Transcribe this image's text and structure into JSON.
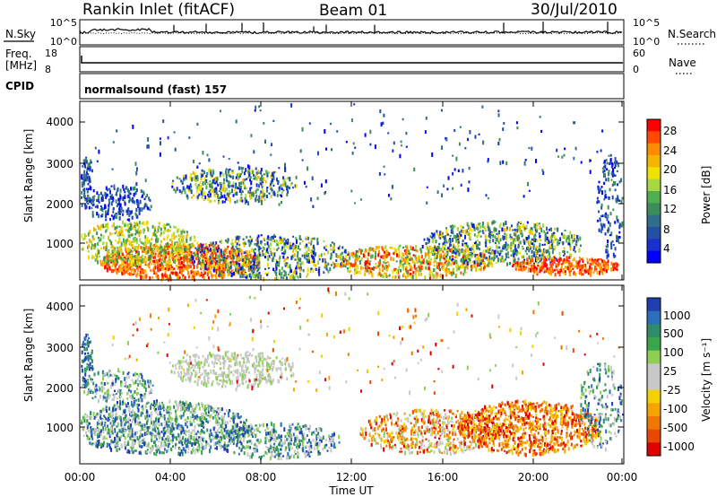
{
  "header": {
    "title": "Rankin Inlet (fitACF)",
    "beam": "Beam 01",
    "date": "30/Jul/2010"
  },
  "sky_panel": {
    "left_label": "N.Sky",
    "right_label": "N.Search",
    "left_ticks": [
      "10^5",
      "10^0"
    ],
    "right_ticks": [
      "10^5",
      "10^0"
    ]
  },
  "freq_panel": {
    "left_label_top": "Freq.",
    "left_label_unit": "[MHz]",
    "left_ticks": [
      "18",
      "8"
    ],
    "right_ticks": [
      "60",
      "0"
    ],
    "right_label": "Nave"
  },
  "cpid_panel": {
    "label": "CPID",
    "value": "normalsound (fast) 157"
  },
  "chart_data": [
    {
      "type": "heatmap",
      "name": "power",
      "ylabel": "Slant Range [km]",
      "y_ticks": [
        "4000",
        "3000",
        "2000",
        "1000"
      ],
      "ylim": [
        180,
        4500
      ],
      "colorbar_label": "Power [dB]",
      "colorbar_ticks": [
        "28",
        "24",
        "20",
        "16",
        "12",
        "8",
        "4"
      ],
      "colorbar_colors": [
        "#ff0000",
        "#ff4a00",
        "#ff8c00",
        "#f5b400",
        "#f0e200",
        "#a8d840",
        "#4fae4f",
        "#3b8e5a",
        "#2e6e8c",
        "#244fa8",
        "#1a2fd0",
        "#0000ff"
      ]
    },
    {
      "type": "heatmap",
      "name": "velocity",
      "ylabel": "Slant Range [km]",
      "y_ticks": [
        "4000",
        "3000",
        "2000",
        "1000"
      ],
      "ylim": [
        180,
        4500
      ],
      "colorbar_label": "Velocity [m s⁻¹]",
      "colorbar_ticks": [
        "1000",
        "500",
        "100",
        "25",
        "-25",
        "-100",
        "-500",
        "-1000"
      ],
      "colorbar_colors": [
        "#1f3fb0",
        "#2c6fbd",
        "#2f8c6a",
        "#3aa64a",
        "#8ccf52",
        "#c8c8c8",
        "#c8c8c8",
        "#f5d000",
        "#f7a400",
        "#f07800",
        "#e84800",
        "#e00000"
      ]
    }
  ],
  "time_axis": {
    "ticks": [
      "00:00",
      "04:00",
      "08:00",
      "12:00",
      "16:00",
      "20:00",
      "00:00"
    ],
    "label": "Time UT"
  }
}
